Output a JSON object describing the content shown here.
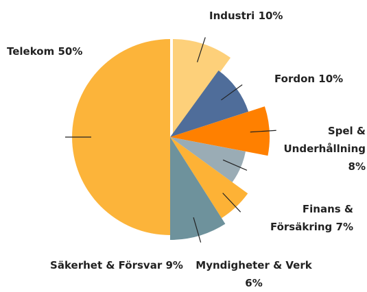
{
  "chart_data": {
    "type": "pie",
    "categories": [
      "Industri",
      "Fordon",
      "Spel & Underhållning",
      "Finans & Försäkring",
      "Myndigheter & Verk",
      "Säkerhet & Försvar",
      "Telekom"
    ],
    "values": [
      10,
      10,
      8,
      7,
      6,
      9,
      50
    ],
    "value_labels": [
      "10%",
      "10%",
      "8%",
      "7%",
      "6%",
      "9%",
      "50%"
    ],
    "colors": [
      "#fdd07a",
      "#4f6d9a",
      "#ff8000",
      "#9aacb5",
      "#fdb236",
      "#6e929c",
      "#fcb43a"
    ]
  }
}
